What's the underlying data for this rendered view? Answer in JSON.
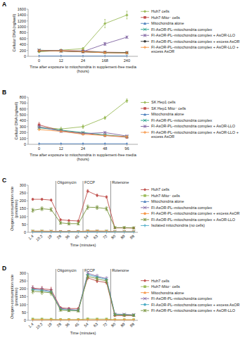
{
  "chart_data": [
    {
      "type": "line",
      "title": "A",
      "legend": "right",
      "grid": false,
      "x_label": "Time after exposure to mitochondria in supplement-free media (hours)",
      "y_label": "Cellular DNA (ng/well)",
      "categories": [
        "0",
        "12",
        "24",
        "168",
        "240"
      ],
      "ylim": [
        0,
        1600
      ],
      "yticks": [
        0,
        200,
        400,
        600,
        800,
        1000,
        1200,
        1400,
        1600
      ],
      "series": [
        {
          "name": "Huh7 cells",
          "color": "#9bbb59",
          "marker": "diamond",
          "values": [
            150,
            210,
            260,
            1110,
            1400
          ],
          "errors": [
            20,
            30,
            40,
            140,
            130
          ]
        },
        {
          "name": "Huh7-Mito⁻ cells",
          "color": "#c0504d",
          "marker": "square",
          "values": [
            200,
            195,
            185,
            140,
            130
          ]
        },
        {
          "name": "Mitochondria alone",
          "color": "#4f81bd",
          "marker": "triangle",
          "values": [
            10,
            10,
            10,
            10,
            10
          ]
        },
        {
          "name": "FI-AsOR-PL–mitochondria complex",
          "color": "#1f9e89",
          "marker": "x",
          "values": [
            210,
            180,
            165,
            130,
            120
          ]
        },
        {
          "name": "FI-AsOR-PL–mitochondria complex + AsOR-LLO",
          "color": "#8064a2",
          "marker": "star",
          "values": [
            200,
            185,
            160,
            420,
            650
          ],
          "errors": [
            20,
            20,
            20,
            50,
            30
          ]
        },
        {
          "name": "FI-AsOR-PL–mitochondria complex + excess AsOR",
          "color": "#333333",
          "marker": "circle",
          "values": [
            190,
            175,
            150,
            125,
            115
          ]
        },
        {
          "name": "FI-AsOR-PL–mitochondria complex + AsOR-LLO + excess AsOR",
          "color": "#f79646",
          "marker": "plus",
          "values": [
            195,
            180,
            155,
            120,
            110
          ]
        }
      ]
    },
    {
      "type": "line",
      "title": "B",
      "legend": "right",
      "grid": false,
      "x_label": "Time after exposure to mitochondria in supplement-free media (hours)",
      "y_label": "Cellular DNA (ng/well)",
      "categories": [
        "0",
        "12",
        "24",
        "48",
        "96"
      ],
      "ylim": [
        0,
        800
      ],
      "yticks": [
        0,
        100,
        200,
        300,
        400,
        500,
        600,
        700,
        800
      ],
      "series": [
        {
          "name": "SK Hep1 cells",
          "color": "#9bbb59",
          "marker": "diamond",
          "values": [
            290,
            260,
            300,
            450,
            740
          ],
          "errors": [
            40,
            30,
            30,
            25,
            30
          ]
        },
        {
          "name": "SK Hep1 Mito⁻ cells",
          "color": "#c0504d",
          "marker": "square",
          "values": [
            330,
            230,
            190,
            150,
            120
          ],
          "errors": [
            40,
            20,
            20,
            15,
            15
          ]
        },
        {
          "name": "Mitochondria alone",
          "color": "#4f81bd",
          "marker": "triangle",
          "values": [
            10,
            10,
            10,
            10,
            10
          ]
        },
        {
          "name": "FI-AsOR-PL–mitochondria complex",
          "color": "#1f9e89",
          "marker": "x",
          "values": [
            280,
            240,
            200,
            160,
            130
          ]
        },
        {
          "name": "FI-AsOR-PL–mitochondria complex + AsOR-LLO",
          "color": "#8064a2",
          "marker": "star",
          "values": [
            300,
            220,
            180,
            200,
            140
          ]
        },
        {
          "name": "FI-AsOR-PL–mitochondria complex + AsOR-LLO + excess AsOR",
          "color": "#f79646",
          "marker": "plus",
          "values": [
            250,
            220,
            170,
            150,
            130
          ]
        }
      ]
    },
    {
      "type": "line",
      "title": "C",
      "legend": "right",
      "grid": false,
      "x_label": "Time (minutes)",
      "y_label": "Oxygen-consumption rate (pmol/min)",
      "x": [
        1.4,
        10.2,
        19,
        28,
        36,
        45,
        54,
        63,
        72,
        80,
        89,
        98
      ],
      "xlim": [
        -3,
        102
      ],
      "xticks": [
        1.4,
        10.2,
        19,
        28,
        36,
        45,
        54,
        63,
        72,
        80,
        89,
        98
      ],
      "ylim": [
        0,
        300
      ],
      "yticks": [
        0,
        50,
        100,
        150,
        200,
        250,
        300
      ],
      "annotations": [
        {
          "text": "Oligomycin",
          "x": 23.5
        },
        {
          "text": "FCCP",
          "x": 49.5
        },
        {
          "text": "Rotenone",
          "x": 76
        }
      ],
      "series": [
        {
          "name": "Huh7 cells",
          "color": "#c0504d",
          "marker": "diamond",
          "values": [
            210,
            210,
            205,
            80,
            75,
            72,
            262,
            235,
            225,
            28,
            28,
            27
          ],
          "errors": [
            6,
            6,
            6,
            5,
            5,
            5,
            10,
            8,
            8,
            4,
            4,
            4
          ]
        },
        {
          "name": "Huh7-Mito⁻ cells",
          "color": "#9bbb59",
          "marker": "square",
          "values": [
            8,
            8,
            7,
            5,
            5,
            5,
            9,
            8,
            8,
            4,
            4,
            4
          ]
        },
        {
          "name": "Mitochondria alone",
          "color": "#4f81bd",
          "marker": "triangle",
          "values": [
            3,
            3,
            3,
            3,
            3,
            3,
            3,
            3,
            3,
            3,
            3,
            3
          ]
        },
        {
          "name": "FI-AsOR-PL–mitochondria complex",
          "color": "#8064a2",
          "marker": "x",
          "values": [
            6,
            6,
            6,
            4,
            4,
            4,
            7,
            7,
            6,
            3,
            3,
            3
          ]
        },
        {
          "name": "FI-AsOR-PL–mitochondria complex + excess AsOR",
          "color": "#f79646",
          "marker": "circle",
          "values": [
            7,
            7,
            7,
            5,
            5,
            5,
            8,
            8,
            7,
            4,
            4,
            4
          ]
        },
        {
          "name": "FI-AsOR-PL–mitochondria complex + AsOR-LLO",
          "color": "#77933c",
          "marker": "star",
          "values": [
            140,
            150,
            145,
            60,
            55,
            55,
            160,
            158,
            150,
            30,
            30,
            28
          ],
          "errors": [
            12,
            12,
            12,
            8,
            8,
            8,
            14,
            12,
            12,
            5,
            5,
            5
          ]
        },
        {
          "name": "Isolated mitochondria (no cells)",
          "color": "#4bacc6",
          "marker": "plus",
          "values": [
            1,
            1,
            1,
            1,
            1,
            1,
            1,
            1,
            1,
            1,
            1,
            1
          ]
        }
      ]
    },
    {
      "type": "line",
      "title": "D",
      "legend": "right",
      "grid": false,
      "x_label": "Time (minutes)",
      "y_label": "Oxygen-consumption rate (pmol/min)",
      "x": [
        1.4,
        10.2,
        19,
        28,
        36,
        45,
        54,
        63,
        72,
        80,
        89,
        98
      ],
      "xlim": [
        -3,
        102
      ],
      "xticks": [
        1.4,
        10.2,
        19,
        28,
        36,
        45,
        54,
        63,
        72,
        80,
        89,
        98
      ],
      "ylim": [
        0,
        300
      ],
      "yticks": [
        0,
        50,
        100,
        150,
        200,
        250,
        300
      ],
      "annotations": [
        {
          "text": "Oligomycin",
          "x": 23.5
        },
        {
          "text": "FCCP",
          "x": 49.5
        },
        {
          "text": "Rotenone",
          "x": 76
        }
      ],
      "series": [
        {
          "name": "Huh7 cells",
          "color": "#c0504d",
          "marker": "diamond",
          "values": [
            205,
            200,
            195,
            80,
            75,
            75,
            270,
            250,
            240,
            30,
            30,
            30
          ],
          "errors": [
            15,
            15,
            15,
            6,
            6,
            6,
            12,
            10,
            10,
            5,
            5,
            5
          ]
        },
        {
          "name": "Huh7-Mito⁻ cells",
          "color": "#9bbb59",
          "marker": "square",
          "values": [
            8,
            8,
            7,
            5,
            5,
            5,
            9,
            8,
            8,
            4,
            4,
            4
          ]
        },
        {
          "name": "Mitochondria alone",
          "color": "#f79646",
          "marker": "triangle",
          "values": [
            3,
            3,
            3,
            3,
            3,
            3,
            3,
            3,
            3,
            3,
            3,
            3
          ]
        },
        {
          "name": "FI-AsOR-PL–mitochondria complex",
          "color": "#8064a2",
          "marker": "x",
          "values": [
            200,
            195,
            185,
            75,
            70,
            65,
            300,
            280,
            265,
            40,
            38,
            35
          ],
          "errors": [
            15,
            15,
            15,
            6,
            6,
            6,
            14,
            12,
            12,
            5,
            5,
            5
          ]
        },
        {
          "name": "FI-AsOR-PL–mitochondria complex + excess AsOR",
          "color": "#4bacc6",
          "marker": "circle",
          "values": [
            195,
            190,
            180,
            70,
            65,
            62,
            290,
            275,
            260,
            38,
            35,
            33
          ]
        },
        {
          "name": "FI-AsOR-PL–mitochondria complex + AsOR-LLO",
          "color": "#77933c",
          "marker": "star",
          "values": [
            185,
            180,
            175,
            65,
            62,
            60,
            280,
            265,
            250,
            35,
            33,
            32
          ],
          "errors": [
            15,
            15,
            15,
            6,
            6,
            6,
            14,
            12,
            12,
            5,
            5,
            5
          ]
        }
      ]
    }
  ]
}
